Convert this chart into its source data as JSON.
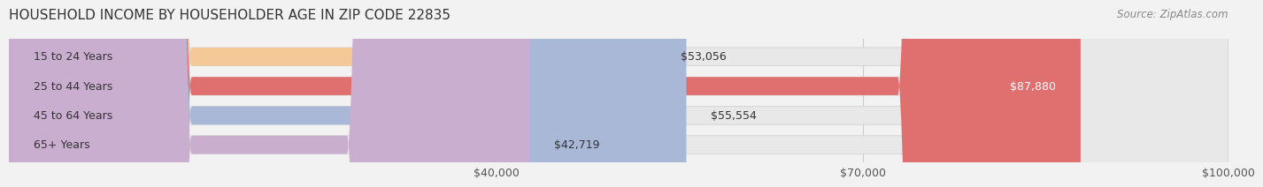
{
  "title": "HOUSEHOLD INCOME BY HOUSEHOLDER AGE IN ZIP CODE 22835",
  "source": "Source: ZipAtlas.com",
  "categories": [
    "15 to 24 Years",
    "25 to 44 Years",
    "45 to 64 Years",
    "65+ Years"
  ],
  "values": [
    53056,
    87880,
    55554,
    42719
  ],
  "colors": [
    "#f5c897",
    "#e07070",
    "#aab8d8",
    "#c9aed0"
  ],
  "bar_labels": [
    "$53,056",
    "$87,880",
    "$55,554",
    "$42,719"
  ],
  "label_colors": [
    "#555555",
    "#ffffff",
    "#555555",
    "#555555"
  ],
  "xmin": 0,
  "xmax": 100000,
  "xticks": [
    40000,
    70000,
    100000
  ],
  "xtick_labels": [
    "$40,000",
    "$70,000",
    "$100,000"
  ],
  "background_color": "#f2f2f2",
  "bar_background_color": "#e8e8e8",
  "title_fontsize": 11,
  "source_fontsize": 8.5,
  "label_fontsize": 9,
  "category_fontsize": 9
}
